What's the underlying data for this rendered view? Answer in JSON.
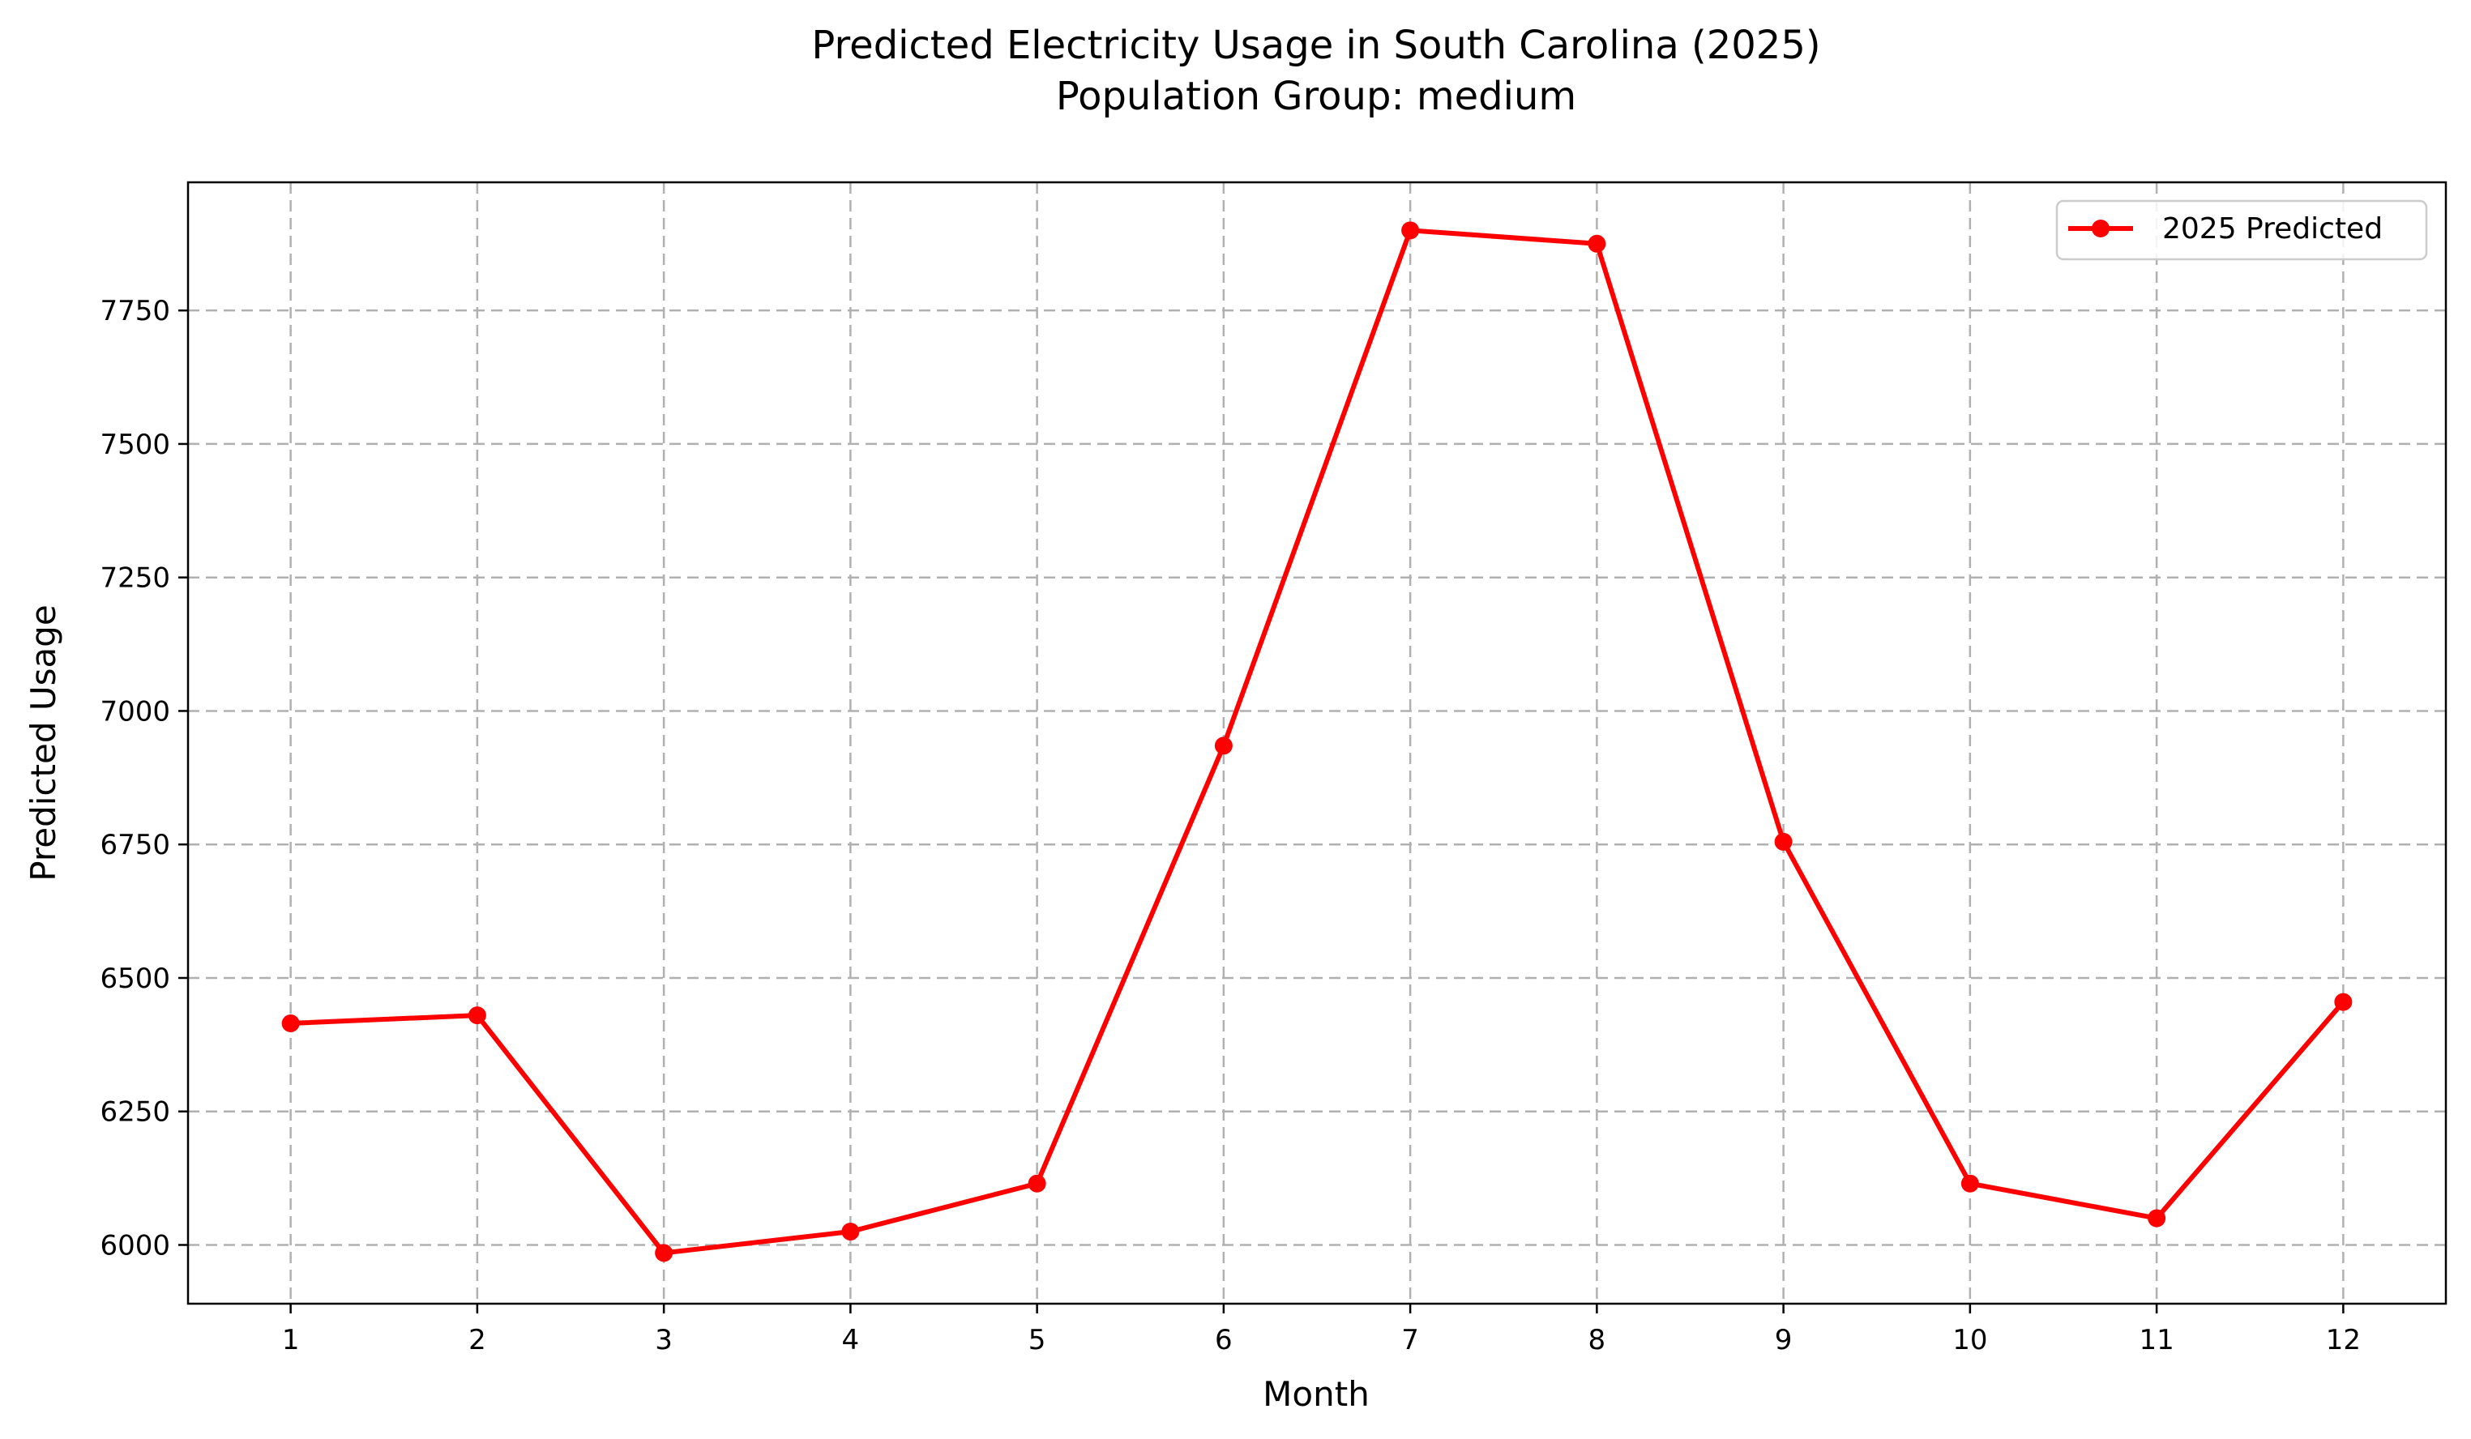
{
  "chart_data": {
    "type": "line",
    "title": "Predicted Electricity Usage in South Carolina (2025)",
    "subtitle": "Population Group: medium",
    "xlabel": "Month",
    "ylabel": "Predicted Usage",
    "x": [
      1,
      2,
      3,
      4,
      5,
      6,
      7,
      8,
      9,
      10,
      11,
      12
    ],
    "xticks": [
      "1",
      "2",
      "3",
      "4",
      "5",
      "6",
      "7",
      "8",
      "9",
      "10",
      "11",
      "12"
    ],
    "yticks": [
      "6000",
      "6250",
      "6500",
      "6750",
      "7000",
      "7250",
      "7500",
      "7750"
    ],
    "xlim": [
      0.45,
      12.55
    ],
    "ylim": [
      5890,
      7990
    ],
    "grid": true,
    "legend_position": "top-right",
    "series": [
      {
        "name": "2025 Predicted",
        "color": "#ff0000",
        "marker": "circle",
        "values": [
          6415,
          6430,
          5985,
          6025,
          6115,
          6935,
          7900,
          7875,
          6755,
          6115,
          6050,
          6455
        ]
      }
    ]
  }
}
